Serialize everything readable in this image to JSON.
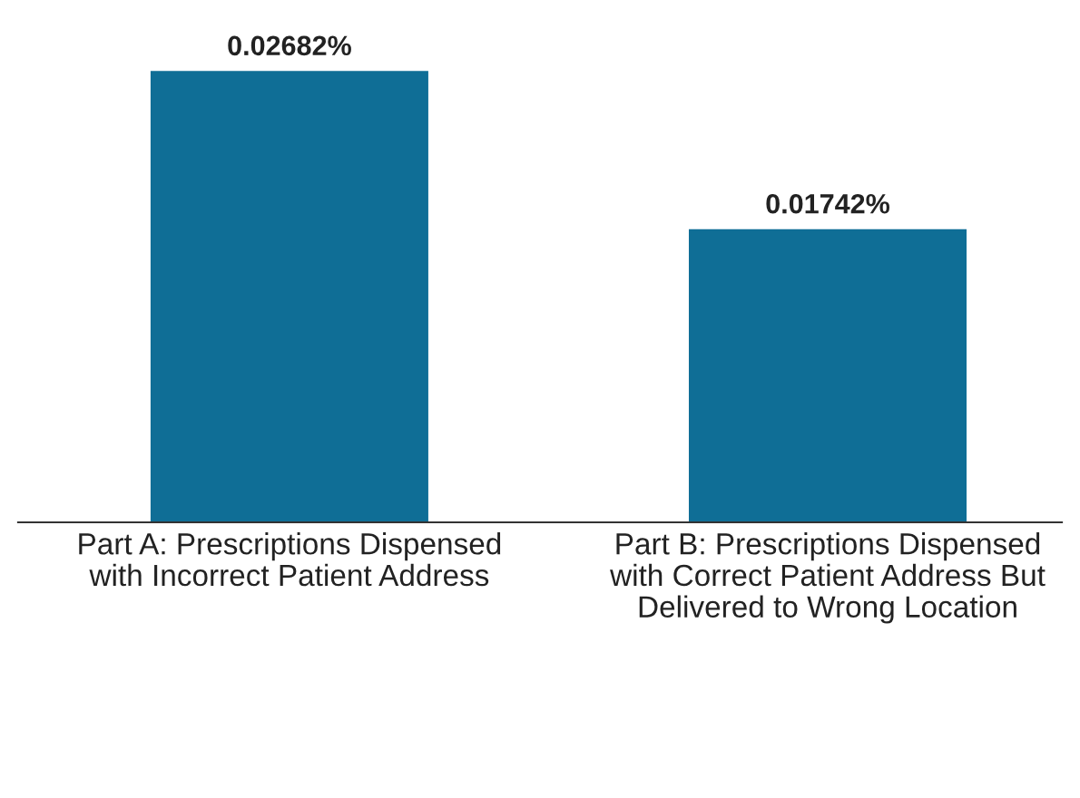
{
  "chart_data": {
    "type": "bar",
    "categories": [
      "Part A: Prescriptions Dispensed with Incorrect Patient Address",
      "Part B: Prescriptions Dispensed with Correct Patient Address But Delivered to Wrong Location"
    ],
    "values": [
      0.02682,
      0.01742
    ],
    "value_labels": [
      "0.02682%",
      "0.01742%"
    ],
    "color": "#0f6e96",
    "grid": false,
    "legend": false
  }
}
